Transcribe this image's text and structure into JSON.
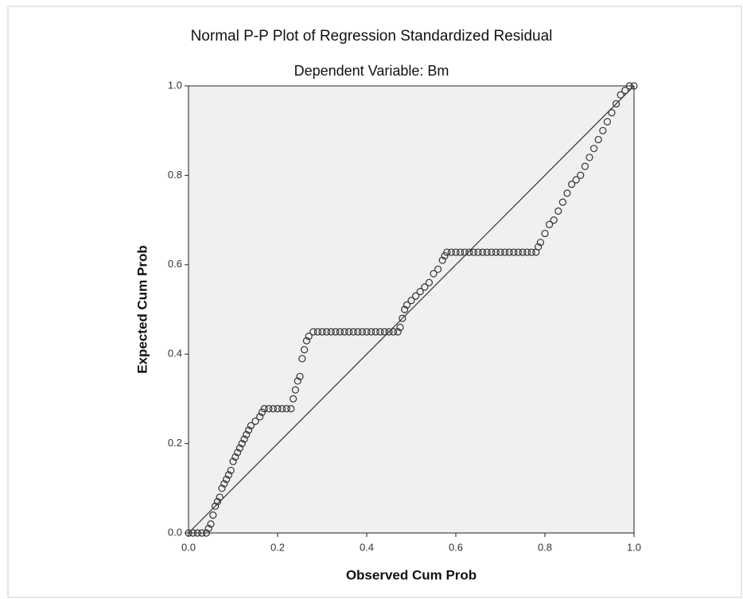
{
  "chart_data": {
    "type": "scatter",
    "title": "Normal P-P Plot of Regression Standardized Residual",
    "subtitle": "Dependent Variable: Bm",
    "x_label": "Observed Cum Prob",
    "y_label": "Expected Cum Prob",
    "xlim": [
      0,
      1
    ],
    "ylim": [
      0,
      1
    ],
    "xticks": [
      {
        "value": 0,
        "label": "0.0"
      },
      0.2,
      0.4,
      0.6,
      0.8,
      {
        "value": 1,
        "label": "1.0"
      }
    ],
    "yticks": [
      {
        "value": 0,
        "label": "0.0"
      },
      0.2,
      0.4,
      0.6,
      0.8,
      {
        "value": 1,
        "label": "1.0"
      }
    ],
    "series": [
      {
        "color": "#333333",
        "x": [
          0,
          0.01,
          0.02,
          0.03,
          0.04,
          0.045,
          0.05,
          0.055,
          0.06,
          0.065,
          0.07,
          0.075,
          0.08,
          0.085,
          0.09,
          0.095,
          0.1,
          0.105,
          0.11,
          0.115,
          0.12,
          0.125,
          0.13,
          0.135,
          0.14,
          0.15,
          0.16,
          0.165,
          0.17,
          0.18,
          0.19,
          0.2,
          0.21,
          0.22,
          0.23,
          0.235,
          0.24,
          0.245,
          0.25,
          0.255,
          0.26,
          0.265,
          0.27,
          0.28,
          0.29,
          0.3,
          0.31,
          0.32,
          0.33,
          0.34,
          0.35,
          0.36,
          0.37,
          0.38,
          0.39,
          0.4,
          0.41,
          0.42,
          0.43,
          0.44,
          0.45,
          0.46,
          0.47,
          0.475,
          0.48,
          0.485,
          0.49,
          0.5,
          0.51,
          0.52,
          0.53,
          0.54,
          0.55,
          0.56,
          0.57,
          0.575,
          0.58,
          0.59,
          0.6,
          0.61,
          0.62,
          0.63,
          0.64,
          0.65,
          0.66,
          0.67,
          0.68,
          0.69,
          0.7,
          0.71,
          0.72,
          0.73,
          0.74,
          0.75,
          0.76,
          0.77,
          0.78,
          0.785,
          0.79,
          0.8,
          0.81,
          0.82,
          0.83,
          0.84,
          0.85,
          0.86,
          0.87,
          0.88,
          0.89,
          0.9,
          0.91,
          0.92,
          0.93,
          0.94,
          0.95,
          0.96,
          0.97,
          0.98,
          0.99,
          1.0
        ],
        "values": [
          0,
          0,
          0,
          0,
          0,
          0.01,
          0.02,
          0.04,
          0.06,
          0.07,
          0.08,
          0.1,
          0.11,
          0.12,
          0.13,
          0.14,
          0.16,
          0.17,
          0.18,
          0.19,
          0.2,
          0.21,
          0.22,
          0.23,
          0.24,
          0.25,
          0.26,
          0.27,
          0.278,
          0.278,
          0.278,
          0.278,
          0.278,
          0.278,
          0.278,
          0.3,
          0.32,
          0.34,
          0.35,
          0.39,
          0.41,
          0.43,
          0.44,
          0.45,
          0.45,
          0.45,
          0.45,
          0.45,
          0.45,
          0.45,
          0.45,
          0.45,
          0.45,
          0.45,
          0.45,
          0.45,
          0.45,
          0.45,
          0.45,
          0.45,
          0.45,
          0.45,
          0.45,
          0.46,
          0.48,
          0.5,
          0.51,
          0.52,
          0.53,
          0.54,
          0.55,
          0.56,
          0.58,
          0.59,
          0.61,
          0.62,
          0.628,
          0.628,
          0.628,
          0.628,
          0.628,
          0.628,
          0.628,
          0.628,
          0.628,
          0.628,
          0.628,
          0.628,
          0.628,
          0.628,
          0.628,
          0.628,
          0.628,
          0.628,
          0.628,
          0.628,
          0.628,
          0.64,
          0.65,
          0.67,
          0.69,
          0.7,
          0.72,
          0.74,
          0.76,
          0.78,
          0.79,
          0.8,
          0.82,
          0.84,
          0.86,
          0.88,
          0.9,
          0.92,
          0.94,
          0.96,
          0.98,
          0.99,
          1.0,
          1.0
        ]
      }
    ]
  }
}
